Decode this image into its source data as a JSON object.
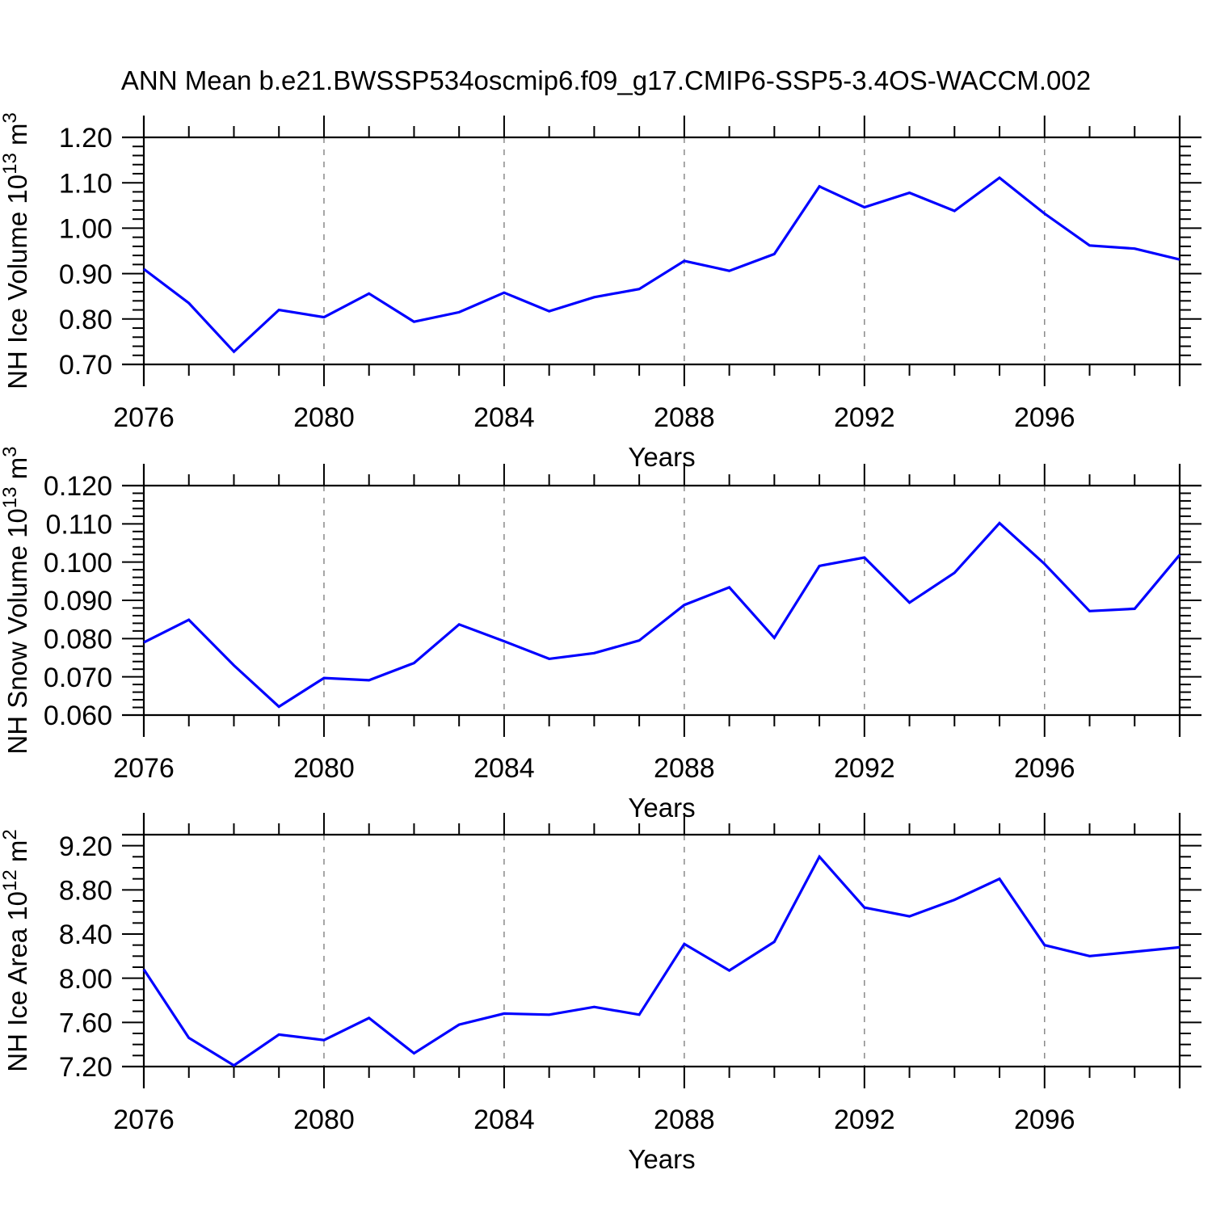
{
  "title": "ANN Mean b.e21.BWSSP534oscmip6.f09_g17.CMIP6-SSP5-3.4OS-WACCM.002",
  "colors": {
    "line": "#0000ff",
    "gridline": "#8a8a8a",
    "axis": "#000000",
    "text": "#000000",
    "background": "#ffffff"
  },
  "x_axis": {
    "label": "Years",
    "range": [
      2076,
      2099
    ],
    "major_ticks": [
      2076,
      2080,
      2084,
      2088,
      2092,
      2096
    ],
    "major_tick_labels": [
      "2076",
      "2080",
      "2084",
      "2088",
      "2092",
      "2096"
    ],
    "minor_step": 1,
    "gridline_years": [
      2080,
      2084,
      2088,
      2092,
      2096
    ]
  },
  "chart_data": [
    {
      "type": "line",
      "name": "nh-ice-volume",
      "ylabel": "NH Ice Volume 10¹³ m³",
      "ylabel_parts": {
        "base": "NH Ice Volume 10",
        "exp": "13",
        "unit": " m",
        "unit_exp": "3"
      },
      "xlabel": "Years",
      "ylim": [
        0.7,
        1.2
      ],
      "ytick_values": [
        0.7,
        0.8,
        0.9,
        1.0,
        1.1,
        1.2
      ],
      "ytick_labels": [
        "0.70",
        "0.80",
        "0.90",
        "1.00",
        "1.10",
        "1.20"
      ],
      "yminor_step": 0.02,
      "grid": "vertical-dashed",
      "x": [
        2076,
        2077,
        2078,
        2079,
        2080,
        2081,
        2082,
        2083,
        2084,
        2085,
        2086,
        2087,
        2088,
        2089,
        2090,
        2091,
        2092,
        2093,
        2094,
        2095,
        2096,
        2097,
        2098,
        2099
      ],
      "values": [
        0.91,
        0.835,
        0.728,
        0.82,
        0.804,
        0.856,
        0.794,
        0.815,
        0.858,
        0.817,
        0.848,
        0.866,
        0.928,
        0.906,
        0.943,
        1.092,
        1.046,
        1.078,
        1.038,
        1.111,
        1.032,
        0.962,
        0.955,
        0.931
      ]
    },
    {
      "type": "line",
      "name": "nh-snow-volume",
      "ylabel": "NH Snow Volume 10¹³ m³",
      "ylabel_parts": {
        "base": "NH Snow Volume 10",
        "exp": "13",
        "unit": " m",
        "unit_exp": "3"
      },
      "xlabel": "Years",
      "ylim": [
        0.06,
        0.12
      ],
      "ytick_values": [
        0.06,
        0.07,
        0.08,
        0.09,
        0.1,
        0.11,
        0.12
      ],
      "ytick_labels": [
        "0.060",
        "0.070",
        "0.080",
        "0.090",
        "0.100",
        "0.110",
        "0.120"
      ],
      "yminor_step": 0.002,
      "grid": "vertical-dashed",
      "x": [
        2076,
        2077,
        2078,
        2079,
        2080,
        2081,
        2082,
        2083,
        2084,
        2085,
        2086,
        2087,
        2088,
        2089,
        2090,
        2091,
        2092,
        2093,
        2094,
        2095,
        2096,
        2097,
        2098,
        2099
      ],
      "values": [
        0.079,
        0.0849,
        0.073,
        0.0622,
        0.0697,
        0.0691,
        0.0736,
        0.0837,
        0.0793,
        0.0747,
        0.0762,
        0.0795,
        0.0888,
        0.0934,
        0.0802,
        0.099,
        0.1012,
        0.0894,
        0.0972,
        0.1102,
        0.0995,
        0.0872,
        0.0878,
        0.1019
      ]
    },
    {
      "type": "line",
      "name": "nh-ice-area",
      "ylabel": "NH Ice Area 10¹² m²",
      "ylabel_parts": {
        "base": "NH Ice Area 10",
        "exp": "12",
        "unit": " m",
        "unit_exp": "2"
      },
      "xlabel": "Years",
      "ylim": [
        7.2,
        9.3
      ],
      "ytick_values": [
        7.2,
        7.6,
        8.0,
        8.4,
        8.8,
        9.2
      ],
      "ytick_labels": [
        "7.20",
        "7.60",
        "8.00",
        "8.40",
        "8.80",
        "9.20"
      ],
      "yminor_step": 0.1,
      "grid": "vertical-dashed",
      "x": [
        2076,
        2077,
        2078,
        2079,
        2080,
        2081,
        2082,
        2083,
        2084,
        2085,
        2086,
        2087,
        2088,
        2089,
        2090,
        2091,
        2092,
        2093,
        2094,
        2095,
        2096,
        2097,
        2098,
        2099
      ],
      "values": [
        8.08,
        7.46,
        7.21,
        7.49,
        7.44,
        7.64,
        7.32,
        7.58,
        7.68,
        7.67,
        7.74,
        7.67,
        8.31,
        8.07,
        8.33,
        9.1,
        8.64,
        8.56,
        8.71,
        8.9,
        8.3,
        8.2,
        8.24,
        8.28
      ]
    }
  ]
}
